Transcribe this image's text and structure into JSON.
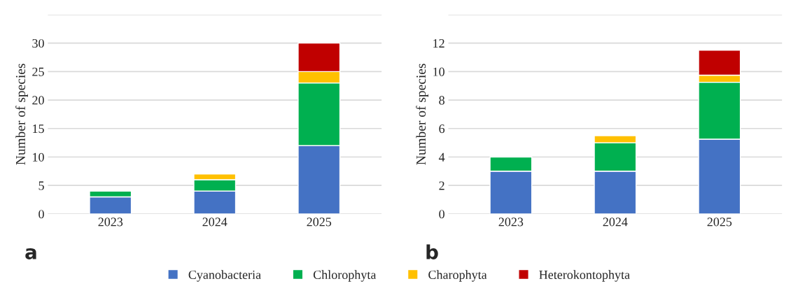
{
  "chart_data": [
    {
      "type": "bar",
      "stacked": true,
      "ylabel": "Number of species",
      "categories": [
        "2023",
        "2024",
        "2025"
      ],
      "ylim": [
        0,
        35
      ],
      "yticks": [
        0,
        5,
        10,
        15,
        20,
        25,
        30,
        {
          "value": 35,
          "label": null
        }
      ],
      "grid": "y",
      "legend": "bottom",
      "annotations": [
        "a"
      ],
      "series": [
        {
          "name": "Cyanobacteria",
          "color": "#4472c4",
          "values": [
            3,
            4,
            12
          ]
        },
        {
          "name": "Chlorophyta",
          "color": "#00b050",
          "values": [
            1,
            2,
            11
          ]
        },
        {
          "name": "Charophyta",
          "color": "#ffc000",
          "values": [
            0,
            1,
            2
          ]
        },
        {
          "name": "Heterokontophyta",
          "color": "#c00000",
          "values": [
            0,
            0,
            5
          ]
        }
      ]
    },
    {
      "type": "bar",
      "stacked": true,
      "ylabel": "Number of species",
      "categories": [
        "2023",
        "2024",
        "2025"
      ],
      "ylim": [
        0,
        14
      ],
      "yticks": [
        0,
        2,
        4,
        6,
        8,
        10,
        12,
        {
          "value": 14,
          "label": null
        }
      ],
      "grid": "y",
      "legend": "bottom",
      "annotations": [
        "b"
      ],
      "series": [
        {
          "name": "Cyanobacteria",
          "color": "#4472c4",
          "values": [
            3,
            3,
            5.25
          ]
        },
        {
          "name": "Chlorophyta",
          "color": "#00b050",
          "values": [
            1,
            2,
            4
          ]
        },
        {
          "name": "Charophyta",
          "color": "#ffc000",
          "values": [
            0,
            0.5,
            0.5
          ]
        },
        {
          "name": "Heterokontophyta",
          "color": "#c00000",
          "values": [
            0,
            0,
            1.75
          ]
        }
      ]
    }
  ]
}
